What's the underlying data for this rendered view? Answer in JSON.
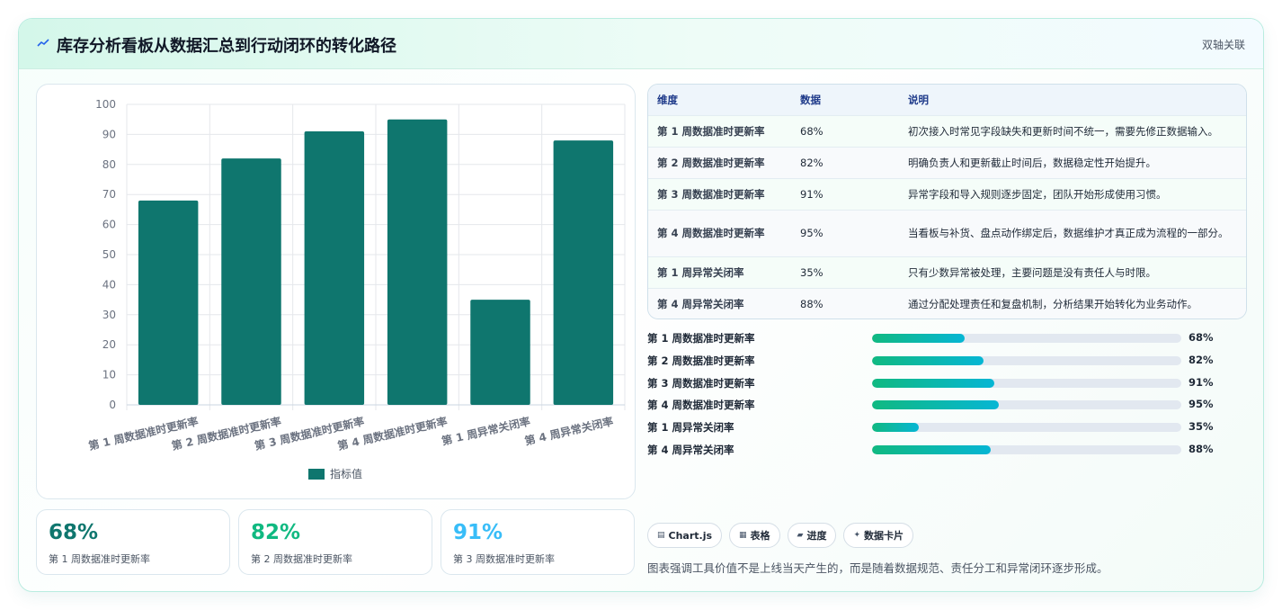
{
  "header": {
    "title": "库存分析看板从数据汇总到行动闭环的转化路径",
    "badge": "双轴关联",
    "icon": "trend-icon"
  },
  "chart_data": {
    "type": "bar",
    "categories": [
      "第 1 周数据准时更新率",
      "第 2 周数据准时更新率",
      "第 3 周数据准时更新率",
      "第 4 周数据准时更新率",
      "第 1 周异常关闭率",
      "第 4 周异常关闭率"
    ],
    "series": [
      {
        "name": "指标值",
        "values": [
          68,
          82,
          91,
          95,
          35,
          88
        ]
      }
    ],
    "ylim": [
      0,
      100
    ],
    "yticks": [
      0,
      10,
      20,
      30,
      40,
      50,
      60,
      70,
      80,
      90,
      100
    ],
    "grid": true,
    "legend": "bottom",
    "bar_color": "#0f766e"
  },
  "stats": [
    {
      "value": "68%",
      "label": "第 1 周数据准时更新率",
      "color": "#0f766e"
    },
    {
      "value": "82%",
      "label": "第 2 周数据准时更新率",
      "color": "#10b981"
    },
    {
      "value": "91%",
      "label": "第 3 周数据准时更新率",
      "color": "#38bdf8"
    }
  ],
  "table": {
    "headers": [
      "维度",
      "数据",
      "说明"
    ],
    "rows": [
      {
        "dim": "第 1 周数据准时更新率",
        "value": "68%",
        "desc": "初次接入时常见字段缺失和更新时间不统一，需要先修正数据输入。"
      },
      {
        "dim": "第 2 周数据准时更新率",
        "value": "82%",
        "desc": "明确负责人和更新截止时间后，数据稳定性开始提升。"
      },
      {
        "dim": "第 3 周数据准时更新率",
        "value": "91%",
        "desc": "异常字段和导入规则逐步固定，团队开始形成使用习惯。"
      },
      {
        "dim": "第 4 周数据准时更新率",
        "value": "95%",
        "desc": "当看板与补货、盘点动作绑定后，数据维护才真正成为流程的一部分。"
      },
      {
        "dim": "第 1 周异常关闭率",
        "value": "35%",
        "desc": "只有少数异常被处理，主要问题是没有责任人与时限。"
      },
      {
        "dim": "第 4 周异常关闭率",
        "value": "88%",
        "desc": "通过分配处理责任和复盘机制，分析结果开始转化为业务动作。"
      }
    ]
  },
  "progress": [
    {
      "label": "第 1 周数据准时更新率",
      "value": "68%",
      "fraction": 0.3
    },
    {
      "label": "第 2 周数据准时更新率",
      "value": "82%",
      "fraction": 0.36
    },
    {
      "label": "第 3 周数据准时更新率",
      "value": "91%",
      "fraction": 0.395
    },
    {
      "label": "第 4 周数据准时更新率",
      "value": "95%",
      "fraction": 0.41
    },
    {
      "label": "第 1 周异常关闭率",
      "value": "35%",
      "fraction": 0.15
    },
    {
      "label": "第 4 周异常关闭率",
      "value": "88%",
      "fraction": 0.385
    }
  ],
  "chips": [
    {
      "icon": "▤",
      "icon_name": "chart-icon",
      "label": "Chart.js"
    },
    {
      "icon": "▦",
      "icon_name": "table-icon",
      "label": "表格"
    },
    {
      "icon": "▰",
      "icon_name": "progress-icon",
      "label": "进度"
    },
    {
      "icon": "✦",
      "icon_name": "sparkle-icon",
      "label": "数据卡片"
    }
  ],
  "footnote": "图表强调工具价值不是上线当天产生的，而是随着数据规范、责任分工和异常闭环逐步形成。"
}
